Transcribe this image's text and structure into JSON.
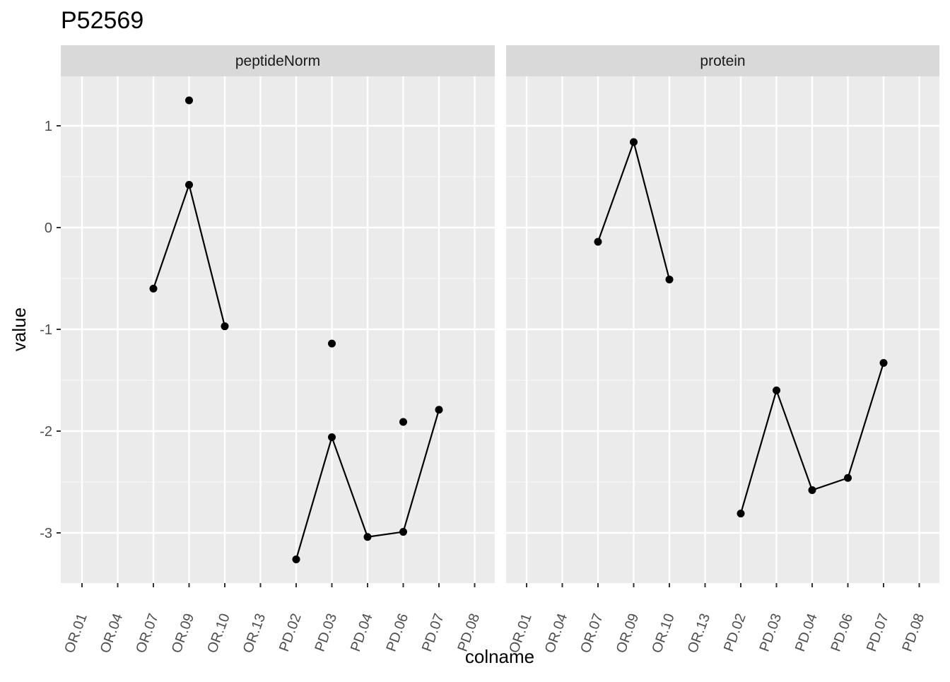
{
  "chart_data": {
    "type": "line",
    "title": "P52569",
    "xlabel": "colname",
    "ylabel": "value",
    "categories": [
      "OR.01",
      "OR.04",
      "OR.07",
      "OR.09",
      "OR.10",
      "OR.13",
      "PD.02",
      "PD.03",
      "PD.04",
      "PD.06",
      "PD.07",
      "PD.08"
    ],
    "y_ticks": [
      1,
      0,
      -1,
      -2,
      -3
    ],
    "y_tick_labels": [
      "1",
      "0",
      "-1",
      "-2",
      "-3"
    ],
    "ylim": [
      -3.5,
      1.5
    ],
    "grid": true,
    "facets": [
      {
        "name": "peptideNorm",
        "series": [
          {
            "values": [
              null,
              null,
              -0.6,
              0.42,
              -0.97,
              null,
              -3.26,
              -2.06,
              -3.04,
              -2.99,
              -1.79,
              null
            ]
          },
          {
            "values": [
              null,
              null,
              null,
              1.25,
              null,
              null,
              null,
              -1.14,
              null,
              -1.91,
              null,
              null
            ]
          }
        ]
      },
      {
        "name": "protein",
        "series": [
          {
            "values": [
              null,
              null,
              -0.14,
              0.84,
              -0.51,
              null,
              -2.81,
              -1.6,
              -2.58,
              -2.46,
              -1.33,
              null
            ]
          }
        ]
      }
    ]
  }
}
